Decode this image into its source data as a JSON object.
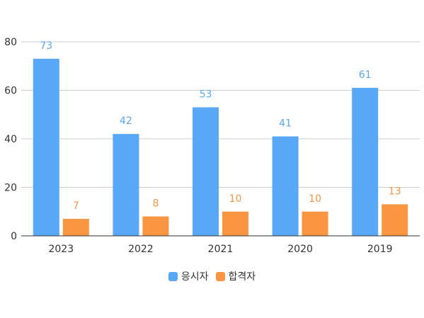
{
  "chart_data": {
    "type": "bar",
    "categories": [
      "2023",
      "2022",
      "2021",
      "2020",
      "2019"
    ],
    "series": [
      {
        "name": "응시자",
        "values": [
          73,
          42,
          53,
          41,
          61
        ],
        "color": "#58a8f7"
      },
      {
        "name": "합격자",
        "values": [
          7,
          8,
          10,
          10,
          13
        ],
        "color": "#fa9642"
      }
    ],
    "ylim": [
      0,
      80
    ],
    "yticks": [
      0,
      20,
      40,
      60,
      80
    ],
    "grid": true,
    "legend_position": "bottom"
  }
}
